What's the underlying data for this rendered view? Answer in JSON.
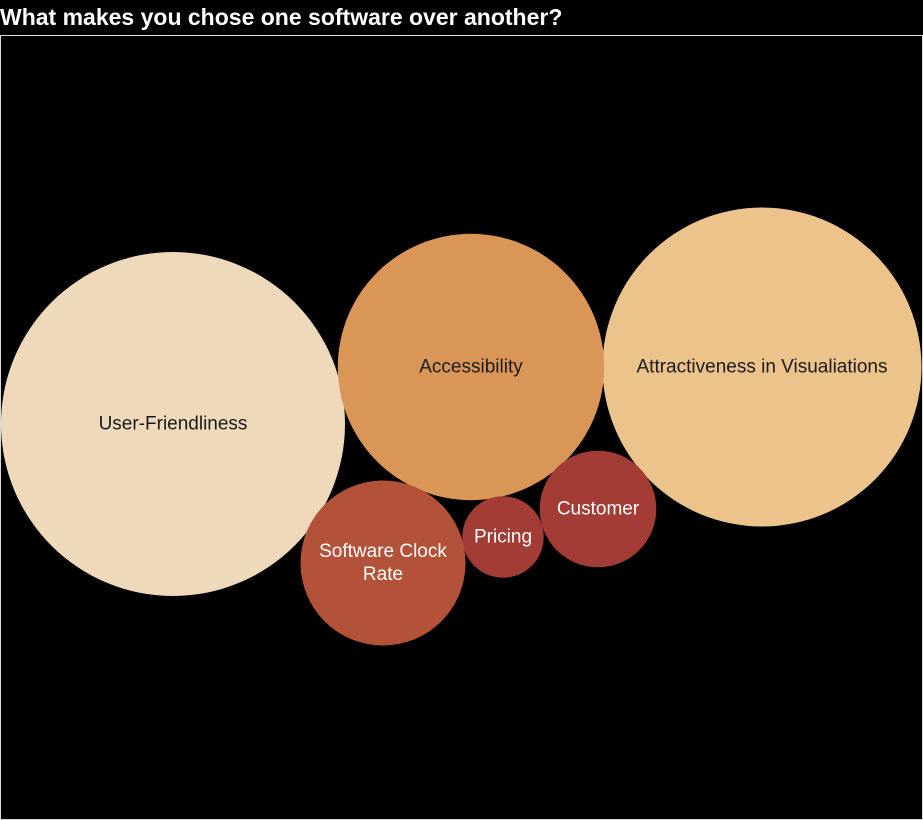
{
  "chart_data": {
    "type": "bubble",
    "title": "What makes you chose one software over another?",
    "bubbles": [
      {
        "label": [
          "User-Friendliness"
        ],
        "value": 100,
        "color": "#eedabb",
        "text_color": "#1a1a1a"
      },
      {
        "label": [
          "Attractiveness in Visualiations"
        ],
        "value": 86,
        "color": "#ebc38b",
        "text_color": "#1a1a1a"
      },
      {
        "label": [
          "Accessibility"
        ],
        "value": 60,
        "color": "#da9656",
        "text_color": "#1a1a1a"
      },
      {
        "label": [
          "Software Clock",
          "Rate"
        ],
        "value": 23,
        "color": "#b35239",
        "text_color": "#ffffff"
      },
      {
        "label": [
          "Customer"
        ],
        "value": 11.5,
        "color": "#a33c35",
        "text_color": "#ffffff"
      },
      {
        "label": [
          "Pricing"
        ],
        "value": 5.6,
        "color": "#a33c35",
        "text_color": "#ffffff"
      }
    ]
  }
}
